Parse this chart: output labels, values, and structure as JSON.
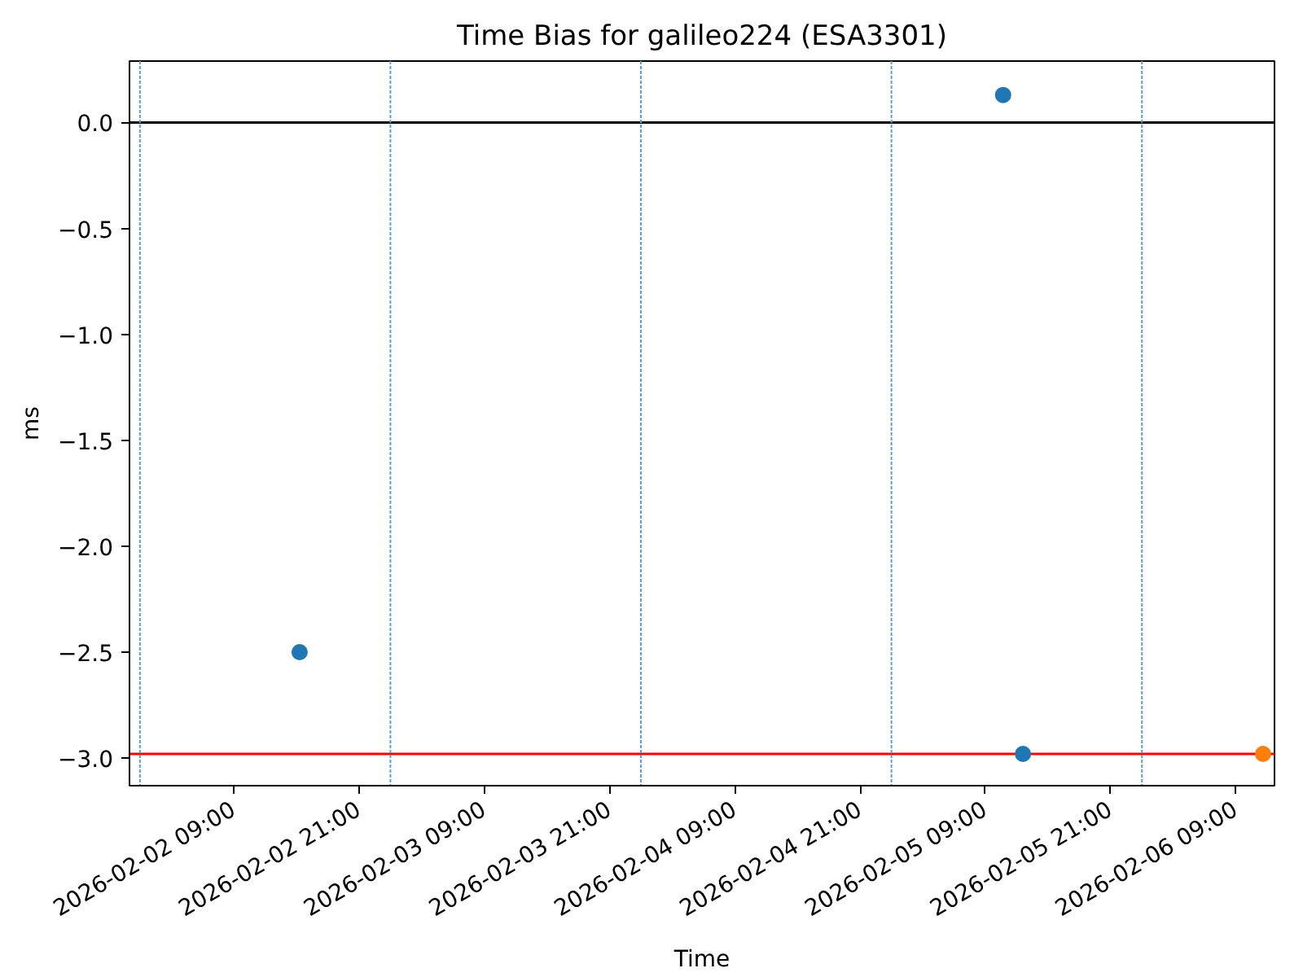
{
  "chart_data": {
    "type": "scatter",
    "title": "Time Bias for galileo224 (ESA3301)",
    "xlabel": "Time",
    "ylabel": "ms",
    "series": [
      {
        "color": "#1f77b4",
        "x": [
          "2026-02-02T15:18",
          "2026-02-05T10:42",
          "2026-02-05T12:36"
        ],
        "values": [
          -2.5,
          0.13,
          -2.98
        ]
      },
      {
        "color": "#ff7f0e",
        "x": [
          "2026-02-06T11:36"
        ],
        "values": [
          -2.98
        ]
      }
    ],
    "xlim": [
      "2026-02-01T23:00",
      "2026-02-06T12:42"
    ],
    "xticks": [
      {
        "value": "2026-02-02T09:00",
        "label": "2026-02-02 09:00"
      },
      {
        "value": "2026-02-02T21:00",
        "label": "2026-02-02 21:00"
      },
      {
        "value": "2026-02-03T09:00",
        "label": "2026-02-03 09:00"
      },
      {
        "value": "2026-02-03T21:00",
        "label": "2026-02-03 21:00"
      },
      {
        "value": "2026-02-04T09:00",
        "label": "2026-02-04 09:00"
      },
      {
        "value": "2026-02-04T21:00",
        "label": "2026-02-04 21:00"
      },
      {
        "value": "2026-02-05T09:00",
        "label": "2026-02-05 09:00"
      },
      {
        "value": "2026-02-05T21:00",
        "label": "2026-02-05 21:00"
      },
      {
        "value": "2026-02-06T09:00",
        "label": "2026-02-06 09:00"
      }
    ],
    "ylim": [
      -3.13,
      0.29
    ],
    "yticks": [
      {
        "value": 0,
        "label": "0.0"
      },
      {
        "value": -0.5,
        "label": "−0.5"
      },
      {
        "value": -1,
        "label": "−1.0"
      },
      {
        "value": -1.5,
        "label": "−1.5"
      },
      {
        "value": -2,
        "label": "−2.0"
      },
      {
        "value": -2.5,
        "label": "−2.5"
      },
      {
        "value": -3,
        "label": "−3.0"
      }
    ],
    "ref_lines": [
      {
        "axis": "y",
        "value": 0,
        "color": "#000000"
      },
      {
        "axis": "y",
        "value": -2.98,
        "color": "#ff0000"
      },
      {
        "axis": "x",
        "value": "2026-02-02",
        "color": "#5a9fd4",
        "line_style": "dashed"
      },
      {
        "axis": "x",
        "value": "2026-02-03",
        "color": "#5a9fd4",
        "line_style": "dashed"
      },
      {
        "axis": "x",
        "value": "2026-02-04",
        "color": "#5a9fd4",
        "line_style": "dashed"
      },
      {
        "axis": "x",
        "value": "2026-02-05",
        "color": "#5a9fd4",
        "line_style": "dashed"
      },
      {
        "axis": "x",
        "value": "2026-02-06",
        "color": "#5a9fd4",
        "line_style": "dashed"
      }
    ],
    "marker": "circle",
    "grid": false
  }
}
